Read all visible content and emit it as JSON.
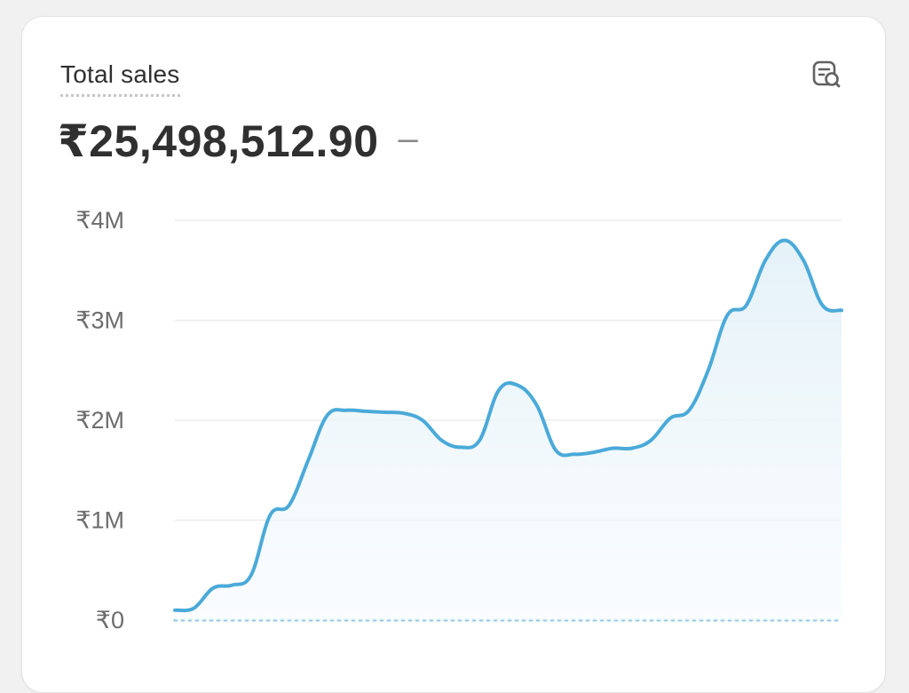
{
  "card": {
    "title": "Total sales",
    "total_value": "₹25,498,512.90",
    "change_indicator": "–",
    "explore_icon": "chart-explore-icon"
  },
  "colors": {
    "line": "#4aaad9",
    "area": "#e8f4fa",
    "grid": "#ebebeb",
    "baseline": "#8ec8e3",
    "text_primary": "#303030",
    "text_secondary": "#6d6d6d"
  },
  "chart_data": {
    "type": "area",
    "title": "Total sales",
    "y_tick_labels": [
      "₹0",
      "₹1M",
      "₹2M",
      "₹3M",
      "₹4M"
    ],
    "y_ticks": [
      0,
      1000000,
      2000000,
      3000000,
      4000000
    ],
    "ylim": [
      0,
      4000000
    ],
    "grid": true,
    "legend": "none",
    "series": [
      {
        "values": [
          100000,
          120000,
          320000,
          350000,
          450000,
          1050000,
          1150000,
          1600000,
          2050000,
          2100000,
          2090000,
          2080000,
          2070000,
          2000000,
          1800000,
          1730000,
          1800000,
          2300000,
          2350000,
          2150000,
          1700000,
          1660000,
          1680000,
          1720000,
          1720000,
          1800000,
          2020000,
          2100000,
          2500000,
          3050000,
          3150000,
          3600000,
          3800000,
          3600000,
          3150000,
          3100000
        ]
      }
    ]
  }
}
